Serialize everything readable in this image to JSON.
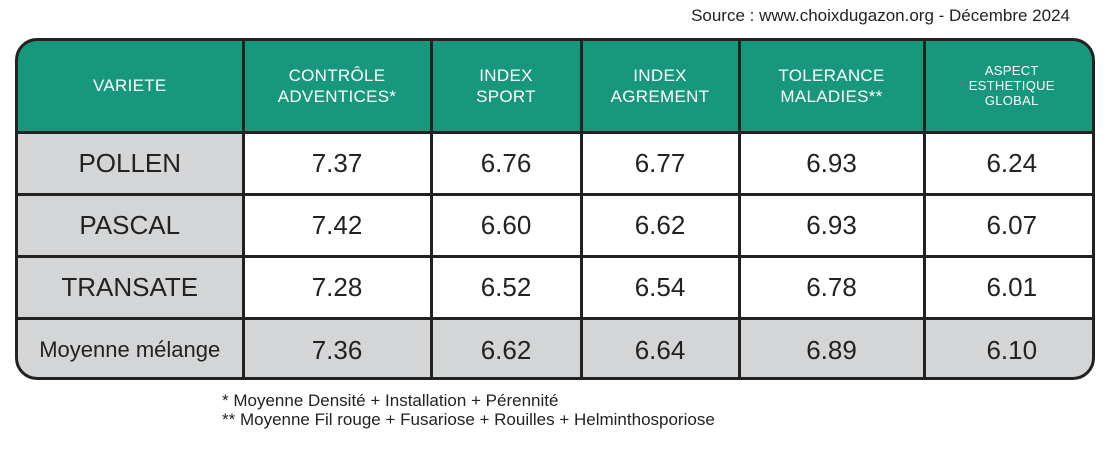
{
  "source": "Source : www.choixdugazon.org - Décembre 2024",
  "chart_data": {
    "type": "table",
    "columns": [
      {
        "lines": [
          "VARIETE"
        ]
      },
      {
        "lines": [
          "CONTRÔLE",
          "ADVENTICES*"
        ]
      },
      {
        "lines": [
          "INDEX",
          "SPORT"
        ]
      },
      {
        "lines": [
          "INDEX",
          "AGREMENT"
        ]
      },
      {
        "lines": [
          "TOLERANCE",
          "MALADIES**"
        ]
      },
      {
        "lines": [
          "ASPECT",
          "ESTHETIQUE",
          "GLOBAL"
        ]
      }
    ],
    "rows": [
      {
        "label": "POLLEN",
        "values": [
          "7.37",
          "6.76",
          "6.77",
          "6.93",
          "6.24"
        ]
      },
      {
        "label": "PASCAL",
        "values": [
          "7.42",
          "6.60",
          "6.62",
          "6.93",
          "6.07"
        ]
      },
      {
        "label": "TRANSATE",
        "values": [
          "7.28",
          "6.52",
          "6.54",
          "6.78",
          "6.01"
        ]
      }
    ],
    "average_row": {
      "label": "Moyenne mélange",
      "values": [
        "7.36",
        "6.62",
        "6.64",
        "6.89",
        "6.10"
      ]
    }
  },
  "footnotes": [
    "* Moyenne Densité + Installation + Pérennité",
    "** Moyenne Fil rouge + Fusariose + Rouilles + Helminthosporiose"
  ],
  "colors": {
    "header_bg": "#17977b",
    "label_bg": "#d4d5d7",
    "border": "#222222"
  }
}
